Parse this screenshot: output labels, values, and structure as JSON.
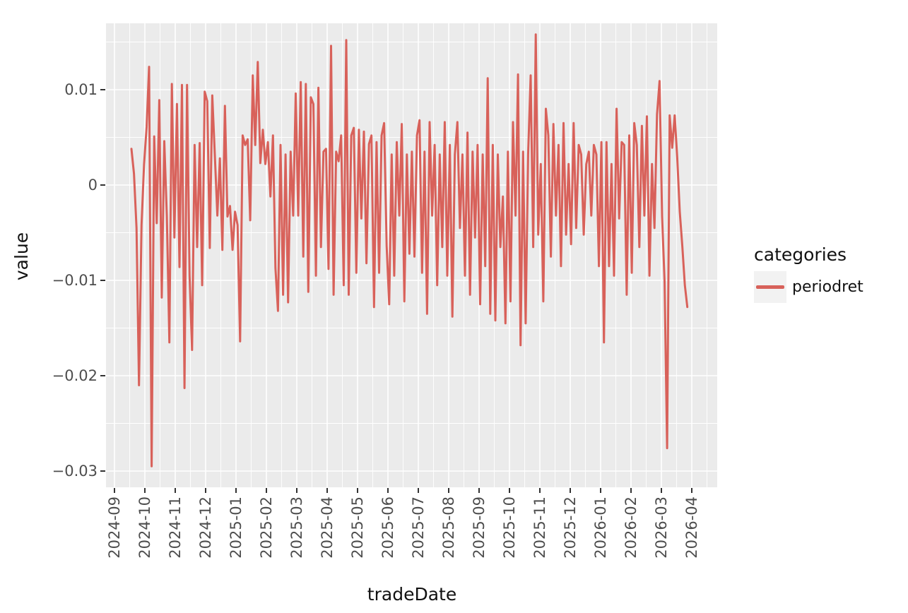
{
  "chart_data": {
    "type": "line",
    "xlabel": "tradeDate",
    "ylabel": "value",
    "legend_title": "categories",
    "legend_position": "right",
    "grid": "major+minor white on gray panel",
    "panel_bg": "#EBEBEB",
    "grid_color": "#FFFFFF",
    "legend_key_bg": "#F2F2F2",
    "tick_text_color": "#4D4D4D",
    "xticks": [
      "2024-09",
      "2024-10",
      "2024-11",
      "2024-12",
      "2025-01",
      "2025-02",
      "2025-03",
      "2025-04",
      "2025-05",
      "2025-06",
      "2025-07",
      "2025-08",
      "2025-09",
      "2025-10",
      "2025-11",
      "2025-12",
      "2026-01",
      "2026-02",
      "2026-03",
      "2026-04"
    ],
    "yticks": {
      "values": [
        0.01,
        0,
        -0.01,
        -0.02,
        -0.03
      ],
      "labels": [
        "0.01",
        "0",
        "−0.01",
        "−0.02",
        "−0.03"
      ]
    },
    "ylim": [
      -0.0317,
      0.017
    ],
    "series": [
      {
        "name": "periodret",
        "color": "#D8615A",
        "x_start": "2024-09-18",
        "x_end": "2026-03-27",
        "x_spacing": "even",
        "values": [
          0.0038,
          0.0012,
          -0.0045,
          -0.021,
          -0.0042,
          0.0022,
          0.0061,
          0.0124,
          -0.0295,
          0.0051,
          -0.004,
          0.0089,
          -0.0118,
          0.0046,
          -0.0032,
          -0.0165,
          0.0106,
          -0.0055,
          0.0085,
          -0.0086,
          0.0105,
          -0.0213,
          0.0105,
          -0.0095,
          -0.0173,
          0.0042,
          -0.0065,
          0.0044,
          -0.0105,
          0.0098,
          0.0088,
          -0.0066,
          0.0094,
          0.0032,
          -0.0032,
          0.0028,
          -0.0068,
          0.0083,
          -0.0033,
          -0.0022,
          -0.0068,
          -0.0028,
          -0.0042,
          -0.0164,
          0.0052,
          0.0042,
          0.0048,
          -0.0037,
          0.0115,
          0.0042,
          0.0129,
          0.0023,
          0.0058,
          0.0022,
          0.0045,
          -0.0012,
          0.0052,
          -0.0087,
          -0.0132,
          0.0042,
          -0.0115,
          0.0032,
          -0.0123,
          0.0035,
          -0.0032,
          0.0096,
          -0.0032,
          0.0108,
          -0.0075,
          0.0106,
          -0.0112,
          0.0092,
          0.0085,
          -0.0095,
          0.0102,
          -0.0065,
          0.0035,
          0.0038,
          -0.0088,
          0.0146,
          -0.0115,
          0.0035,
          0.0025,
          0.0052,
          -0.0105,
          0.0152,
          -0.0115,
          0.0052,
          0.006,
          -0.0092,
          0.0058,
          -0.0035,
          0.0056,
          -0.0082,
          0.0043,
          0.0052,
          -0.0128,
          0.0045,
          -0.0092,
          0.0052,
          0.0065,
          -0.0064,
          -0.0125,
          0.0032,
          -0.0095,
          0.0045,
          -0.0032,
          0.0064,
          -0.0122,
          0.0032,
          -0.0072,
          0.0035,
          -0.0075,
          0.0052,
          0.0068,
          -0.0092,
          0.0035,
          -0.0135,
          0.0066,
          -0.0032,
          0.0042,
          -0.0105,
          0.0032,
          -0.0065,
          0.0066,
          -0.0095,
          0.0042,
          -0.0138,
          0.0032,
          0.0066,
          -0.0045,
          0.0032,
          -0.0095,
          0.0055,
          -0.0115,
          0.0035,
          -0.0055,
          0.0042,
          -0.0125,
          0.0032,
          -0.0085,
          0.0112,
          -0.0135,
          0.0042,
          -0.0142,
          0.0032,
          -0.0065,
          -0.0012,
          -0.0145,
          0.0035,
          -0.0122,
          0.0066,
          -0.0032,
          0.0116,
          -0.0168,
          0.0035,
          -0.0145,
          0.0032,
          0.0115,
          -0.0065,
          0.0158,
          -0.0052,
          0.0022,
          -0.0122,
          0.008,
          0.0052,
          -0.0075,
          0.0064,
          -0.0032,
          0.0042,
          -0.0085,
          0.0065,
          -0.0052,
          0.0022,
          -0.0062,
          0.0065,
          -0.0045,
          0.0042,
          0.0032,
          -0.0052,
          0.0022,
          0.0035,
          -0.0032,
          0.0042,
          0.0032,
          -0.0085,
          0.0045,
          -0.0165,
          0.0045,
          -0.0085,
          0.0022,
          -0.0095,
          0.008,
          -0.0035,
          0.0045,
          0.0042,
          -0.0115,
          0.0052,
          -0.0092,
          0.0065,
          0.0042,
          -0.0065,
          0.0062,
          -0.0032,
          0.0072,
          -0.0095,
          0.0022,
          -0.0045,
          0.0074,
          0.0109,
          -0.0033,
          -0.0101,
          -0.0276,
          0.0073,
          0.0039,
          0.0073,
          0.0029,
          -0.0028,
          -0.0064,
          -0.0105,
          -0.0128
        ]
      }
    ]
  }
}
